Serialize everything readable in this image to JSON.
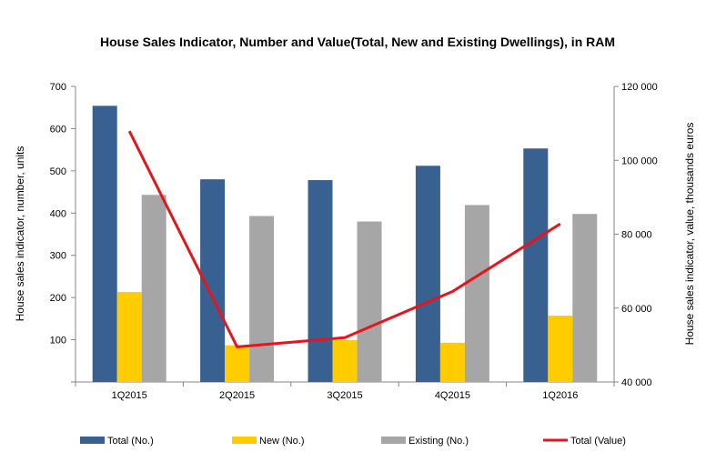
{
  "chart_data": {
    "type": "bar",
    "title": "House Sales Indicator, Number and Value(Total,  New and Existing Dwellings), in RAM",
    "categories": [
      "1Q2015",
      "2Q2015",
      "3Q2015",
      "4Q2015",
      "1Q2016"
    ],
    "ylabel_left": "House sales indicator, number, units",
    "ylabel_right": "House sales indicator, value, thousands euros",
    "ylim_left": [
      0,
      700
    ],
    "yticks_left": [
      "700",
      "600",
      "500",
      "400",
      "300",
      "200",
      "100"
    ],
    "ylim_right": [
      40000,
      120000
    ],
    "yticks_right": [
      "120 000",
      "100 000",
      "80 000",
      "60 000",
      "40 000"
    ],
    "series": [
      {
        "name": "Total (No.)",
        "type": "bar",
        "axis": "left",
        "color": "#386090",
        "values": [
          654,
          480,
          478,
          512,
          553
        ]
      },
      {
        "name": "New (No.)",
        "type": "bar",
        "axis": "left",
        "color": "#ffcc00",
        "values": [
          213,
          87,
          99,
          93,
          157
        ]
      },
      {
        "name": "Existing (No.)",
        "type": "bar",
        "axis": "left",
        "color": "#a6a6a6",
        "values": [
          443,
          393,
          380,
          419,
          398
        ]
      },
      {
        "name": "Total (Value)",
        "type": "line",
        "axis": "right",
        "color": "#e8141c",
        "values": [
          107900,
          49500,
          52000,
          64500,
          82800
        ]
      }
    ],
    "grid": false,
    "legend_position": "bottom"
  }
}
